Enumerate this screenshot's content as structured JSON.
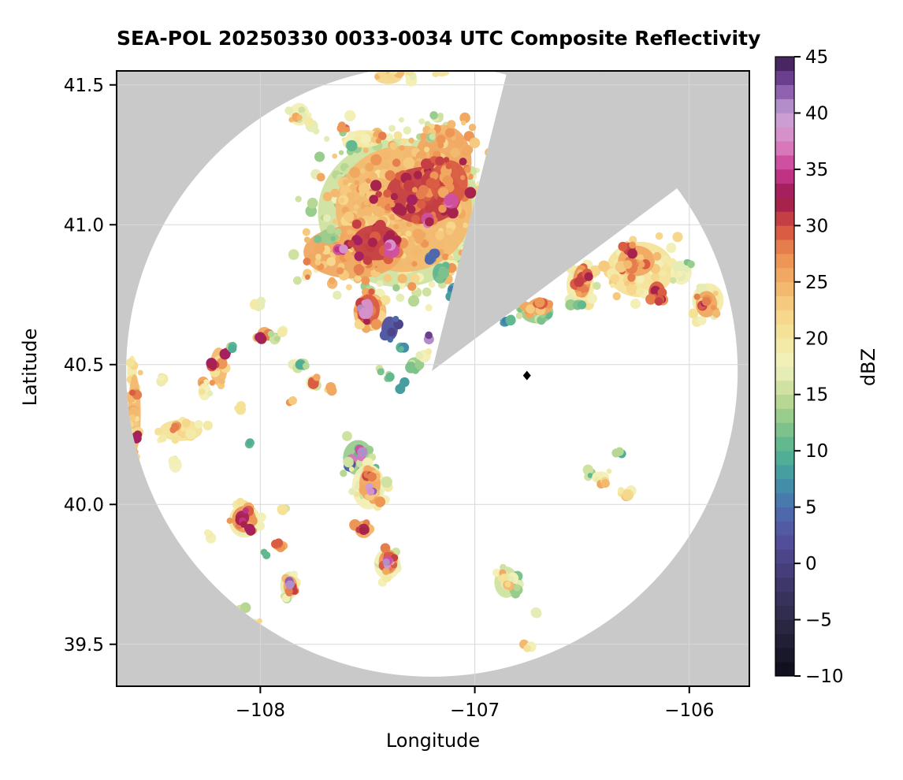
{
  "title": "SEA-POL 20250330 0033-0034 UTC Composite Reflectivity",
  "axes": {
    "xlabel": "Longitude",
    "ylabel": "Latitude",
    "xlim": [
      -108.67,
      -105.72
    ],
    "ylim": [
      39.35,
      41.55
    ],
    "xticks": [
      {
        "v": -108,
        "label": "−108"
      },
      {
        "v": -107,
        "label": "−107"
      },
      {
        "v": -106,
        "label": "−106"
      }
    ],
    "yticks": [
      {
        "v": 39.5,
        "label": "39.5"
      },
      {
        "v": 40.0,
        "label": "40.0"
      },
      {
        "v": 40.5,
        "label": "40.5"
      },
      {
        "v": 41.0,
        "label": "41.0"
      },
      {
        "v": 41.5,
        "label": "41.5"
      }
    ],
    "grid": true
  },
  "colorbar": {
    "label": "dBZ",
    "min": -10,
    "max": 45,
    "band_step": 1.25,
    "ticks": [
      {
        "v": -10,
        "label": "−10"
      },
      {
        "v": -5,
        "label": "−5"
      },
      {
        "v": 0,
        "label": "0"
      },
      {
        "v": 5,
        "label": "5"
      },
      {
        "v": 10,
        "label": "10"
      },
      {
        "v": 15,
        "label": "15"
      },
      {
        "v": 20,
        "label": "20"
      },
      {
        "v": 25,
        "label": "25"
      },
      {
        "v": 30,
        "label": "30"
      },
      {
        "v": 35,
        "label": "35"
      },
      {
        "v": 40,
        "label": "40"
      },
      {
        "v": 45,
        "label": "45"
      }
    ],
    "stops": [
      [
        -10,
        "#0d0c18"
      ],
      [
        -7.5,
        "#1d1b30"
      ],
      [
        -5,
        "#2c2a47"
      ],
      [
        -2.5,
        "#3a3561"
      ],
      [
        0,
        "#494183"
      ],
      [
        2.5,
        "#5552a0"
      ],
      [
        5,
        "#4a70b0"
      ],
      [
        7.5,
        "#4297a5"
      ],
      [
        10,
        "#55b491"
      ],
      [
        12.5,
        "#8ac78b"
      ],
      [
        15,
        "#c5dd97"
      ],
      [
        17.5,
        "#f1f1bf"
      ],
      [
        20,
        "#f5e79f"
      ],
      [
        22.5,
        "#f6d286"
      ],
      [
        25,
        "#f2b167"
      ],
      [
        27.5,
        "#ec8d50"
      ],
      [
        30,
        "#d34b3f"
      ],
      [
        32.5,
        "#99164f"
      ],
      [
        35,
        "#cb3d93"
      ],
      [
        37.5,
        "#dc8ac6"
      ],
      [
        40,
        "#c5a3d7"
      ],
      [
        42.5,
        "#7e4ba2"
      ],
      [
        45,
        "#351a4d"
      ]
    ]
  },
  "radar": {
    "center_lon": -107.2,
    "center_lat": 40.477,
    "range_deg_lon": 1.425,
    "range_deg_lat": 1.093,
    "missing_sector_azimuth_deg": [
      14.1,
      53.3
    ],
    "site_marker": {
      "lon": -106.757,
      "lat": 40.461
    }
  },
  "colors": {
    "figure_bg": "#ffffff",
    "outside_scan": "#c9c9c9",
    "scan_area": "#ffffff",
    "grid": "#d8d8d8",
    "spine": "#000000",
    "marker": "#000000"
  },
  "chart_data": {
    "type": "heatmap",
    "units": "dBZ",
    "value_range": [
      -10,
      45
    ],
    "cell_format": [
      "lon",
      "lat",
      "rx_deg",
      "ry_deg",
      "dbz"
    ],
    "cells": [
      [
        -107.349,
        41.043,
        0.478,
        0.332,
        16
      ],
      [
        -107.562,
        41.15,
        0.073,
        0.079,
        16
      ],
      [
        -107.331,
        41.057,
        0.397,
        0.282,
        24
      ],
      [
        -107.147,
        41.226,
        0.165,
        0.163,
        25
      ],
      [
        -107.569,
        40.902,
        0.287,
        0.118,
        25
      ],
      [
        -107.68,
        40.958,
        0.055,
        0.034,
        13
      ],
      [
        -107.239,
        41.105,
        0.22,
        0.127,
        30
      ],
      [
        -107.459,
        40.936,
        0.14,
        0.079,
        31
      ],
      [
        -107.121,
        41.15,
        0.11,
        0.101,
        29
      ],
      [
        -107.11,
        41.085,
        0.044,
        0.034,
        36
      ],
      [
        -107.22,
        41.021,
        0.037,
        0.028,
        35
      ],
      [
        -107.386,
        40.908,
        0.044,
        0.034,
        36
      ],
      [
        -107.636,
        40.911,
        0.033,
        0.025,
        35
      ],
      [
        -107.206,
        40.882,
        0.033,
        0.025,
        5
      ],
      [
        -107.162,
        40.826,
        0.044,
        0.045,
        11
      ],
      [
        -107.099,
        40.761,
        0.037,
        0.039,
        8
      ],
      [
        -107.489,
        40.688,
        0.096,
        0.085,
        24
      ],
      [
        -107.496,
        40.697,
        0.066,
        0.068,
        29
      ],
      [
        -107.5,
        40.699,
        0.033,
        0.045,
        38
      ],
      [
        -107.397,
        40.629,
        0.048,
        0.054,
        2
      ],
      [
        -107.345,
        40.561,
        0.029,
        0.023,
        9
      ],
      [
        -107.279,
        40.499,
        0.048,
        0.034,
        13
      ],
      [
        -107.235,
        40.53,
        0.037,
        0.028,
        18
      ],
      [
        -107.217,
        40.595,
        0.018,
        0.014,
        40
      ],
      [
        -107.404,
        41.53,
        0.081,
        0.034,
        22
      ],
      [
        -107.301,
        41.536,
        0.033,
        0.025,
        18
      ],
      [
        -107.154,
        41.544,
        0.044,
        0.017,
        20
      ],
      [
        -107.819,
        41.395,
        0.059,
        0.051,
        18
      ],
      [
        -107.834,
        41.381,
        0.022,
        0.017,
        25
      ],
      [
        -107.76,
        41.353,
        0.037,
        0.028,
        17
      ],
      [
        -107.61,
        41.347,
        0.033,
        0.017,
        29
      ],
      [
        -107.514,
        41.308,
        0.11,
        0.039,
        19
      ],
      [
        -107.452,
        41.319,
        0.029,
        0.023,
        26
      ],
      [
        -107.569,
        41.288,
        0.022,
        0.017,
        13
      ],
      [
        -107.173,
        41.381,
        0.033,
        0.02,
        15
      ],
      [
        -107.198,
        41.308,
        0.018,
        0.014,
        14
      ],
      [
        -107.999,
        40.711,
        0.026,
        0.02,
        17
      ],
      [
        -107.981,
        40.612,
        0.04,
        0.028,
        26
      ],
      [
        -107.999,
        40.601,
        0.018,
        0.014,
        31
      ],
      [
        -107.929,
        40.595,
        0.029,
        0.023,
        13
      ],
      [
        -107.893,
        40.623,
        0.026,
        0.02,
        18
      ],
      [
        -107.834,
        40.502,
        0.048,
        0.023,
        18
      ],
      [
        -107.797,
        40.491,
        0.018,
        0.014,
        12
      ],
      [
        -107.397,
        40.454,
        0.026,
        0.02,
        12
      ],
      [
        -107.342,
        40.426,
        0.018,
        0.014,
        9
      ],
      [
        -107.437,
        40.48,
        0.018,
        0.014,
        14
      ],
      [
        -107.753,
        40.435,
        0.044,
        0.034,
        18
      ],
      [
        -107.757,
        40.44,
        0.026,
        0.02,
        29
      ],
      [
        -107.676,
        40.418,
        0.018,
        0.014,
        24
      ],
      [
        -107.848,
        40.373,
        0.022,
        0.017,
        25
      ],
      [
        -108.194,
        40.493,
        0.051,
        0.085,
        24
      ],
      [
        -108.157,
        40.544,
        0.026,
        0.02,
        33
      ],
      [
        -108.209,
        40.499,
        0.022,
        0.017,
        31
      ],
      [
        -108.271,
        40.434,
        0.026,
        0.02,
        27
      ],
      [
        -108.26,
        40.403,
        0.037,
        0.039,
        18
      ],
      [
        -108.135,
        40.558,
        0.015,
        0.011,
        12
      ],
      [
        -108.462,
        40.44,
        0.029,
        0.023,
        17
      ],
      [
        -108.047,
        40.218,
        0.015,
        0.011,
        12
      ],
      [
        -108.598,
        40.474,
        0.029,
        0.073,
        19
      ],
      [
        -108.587,
        40.325,
        0.037,
        0.175,
        24
      ],
      [
        -108.594,
        40.395,
        0.022,
        0.017,
        27
      ],
      [
        -108.58,
        40.246,
        0.022,
        0.017,
        31
      ],
      [
        -108.37,
        40.265,
        0.125,
        0.048,
        20
      ],
      [
        -108.392,
        40.28,
        0.029,
        0.023,
        26
      ],
      [
        -108.396,
        40.141,
        0.037,
        0.034,
        18
      ],
      [
        -108.091,
        40.339,
        0.022,
        0.017,
        18
      ],
      [
        -108.238,
        39.894,
        0.022,
        0.017,
        18
      ],
      [
        -107.544,
        40.167,
        0.088,
        0.079,
        13
      ],
      [
        -107.536,
        40.195,
        0.029,
        0.023,
        36
      ],
      [
        -107.573,
        40.153,
        0.022,
        0.017,
        35
      ],
      [
        -107.584,
        40.133,
        0.026,
        0.02,
        2
      ],
      [
        -107.525,
        40.178,
        0.018,
        0.014,
        40
      ],
      [
        -107.496,
        40.063,
        0.096,
        0.101,
        18
      ],
      [
        -107.489,
        40.074,
        0.062,
        0.076,
        25
      ],
      [
        -107.503,
        40.102,
        0.029,
        0.023,
        30
      ],
      [
        -107.489,
        40.048,
        0.018,
        0.014,
        40
      ],
      [
        -107.518,
        39.911,
        0.051,
        0.039,
        26
      ],
      [
        -107.518,
        39.911,
        0.033,
        0.025,
        32
      ],
      [
        -107.408,
        39.787,
        0.077,
        0.07,
        18
      ],
      [
        -107.404,
        39.795,
        0.055,
        0.054,
        27
      ],
      [
        -107.397,
        39.812,
        0.029,
        0.023,
        31
      ],
      [
        -107.408,
        39.784,
        0.022,
        0.017,
        39
      ],
      [
        -108.073,
        39.942,
        0.092,
        0.076,
        19
      ],
      [
        -108.076,
        39.947,
        0.07,
        0.059,
        27
      ],
      [
        -108.084,
        39.953,
        0.04,
        0.031,
        33
      ],
      [
        -108.054,
        39.914,
        0.026,
        0.02,
        33
      ],
      [
        -107.907,
        39.852,
        0.044,
        0.023,
        25
      ],
      [
        -107.926,
        39.86,
        0.015,
        0.011,
        30
      ],
      [
        -107.893,
        39.981,
        0.026,
        0.02,
        18
      ],
      [
        -107.863,
        39.711,
        0.055,
        0.062,
        17
      ],
      [
        -107.86,
        39.708,
        0.04,
        0.045,
        26
      ],
      [
        -107.852,
        39.694,
        0.022,
        0.017,
        31
      ],
      [
        -107.867,
        39.716,
        0.015,
        0.011,
        39
      ],
      [
        -108.073,
        39.632,
        0.026,
        0.02,
        17
      ],
      [
        -108.018,
        39.575,
        0.018,
        0.014,
        20
      ],
      [
        -107.974,
        39.823,
        0.015,
        0.011,
        12
      ],
      [
        -106.86,
        40.649,
        0.029,
        0.017,
        7
      ],
      [
        -106.831,
        40.665,
        0.022,
        0.017,
        12
      ],
      [
        -106.71,
        40.688,
        0.096,
        0.051,
        13
      ],
      [
        -106.695,
        40.708,
        0.073,
        0.039,
        25
      ],
      [
        -106.691,
        40.716,
        0.029,
        0.023,
        29
      ],
      [
        -106.508,
        40.784,
        0.081,
        0.09,
        19
      ],
      [
        -106.501,
        40.798,
        0.051,
        0.073,
        27
      ],
      [
        -106.497,
        40.812,
        0.033,
        0.025,
        31
      ],
      [
        -106.515,
        40.716,
        0.04,
        0.02,
        13
      ],
      [
        -106.229,
        40.84,
        0.198,
        0.124,
        21
      ],
      [
        -106.247,
        40.871,
        0.107,
        0.068,
        26
      ],
      [
        -106.28,
        40.913,
        0.037,
        0.028,
        30
      ],
      [
        -106.151,
        40.759,
        0.048,
        0.048,
        29
      ],
      [
        -106.126,
        40.733,
        0.022,
        0.017,
        32
      ],
      [
        -106.038,
        40.829,
        0.062,
        0.054,
        18
      ],
      [
        -106.008,
        40.866,
        0.018,
        0.014,
        13
      ],
      [
        -105.913,
        40.73,
        0.092,
        0.076,
        19
      ],
      [
        -105.92,
        40.716,
        0.062,
        0.059,
        26
      ],
      [
        -105.939,
        40.711,
        0.029,
        0.023,
        31
      ],
      [
        -106.457,
        40.113,
        0.026,
        0.02,
        13
      ],
      [
        -106.412,
        40.096,
        0.048,
        0.028,
        18
      ],
      [
        -106.401,
        40.082,
        0.015,
        0.011,
        24
      ],
      [
        -106.291,
        40.035,
        0.04,
        0.028,
        19
      ],
      [
        -106.291,
        40.032,
        0.022,
        0.017,
        24
      ],
      [
        -106.328,
        40.181,
        0.015,
        0.011,
        12
      ],
      [
        -106.853,
        39.722,
        0.07,
        0.07,
        15
      ],
      [
        -106.871,
        39.744,
        0.015,
        0.011,
        23
      ],
      [
        -106.838,
        39.71,
        0.015,
        0.011,
        22
      ],
      [
        -106.813,
        39.688,
        0.018,
        0.014,
        12
      ],
      [
        -106.71,
        39.609,
        0.026,
        0.02,
        18
      ],
      [
        -106.754,
        39.488,
        0.026,
        0.02,
        21
      ]
    ]
  }
}
